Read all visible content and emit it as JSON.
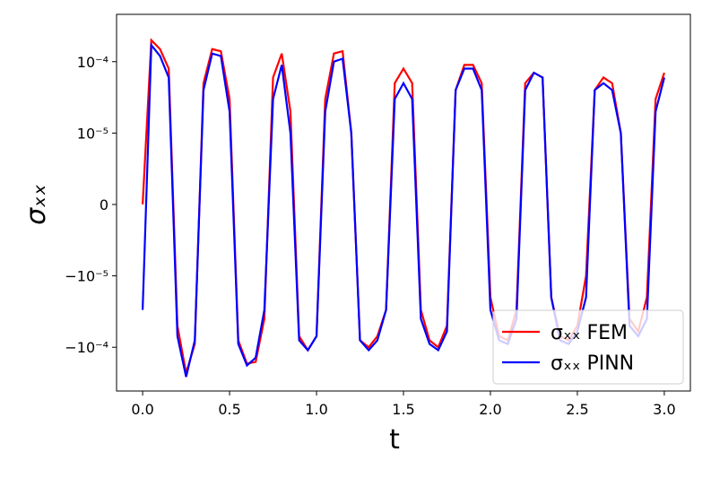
{
  "chart_data": {
    "type": "line",
    "xlabel": "t",
    "ylabel": "σₓₓ",
    "yscale": "symlog",
    "linthresh": 1e-05,
    "xlim": [
      -0.15,
      3.15
    ],
    "ylim": [
      -0.00041,
      0.00046
    ],
    "xticks": [
      {
        "value": 0,
        "label": "0.0"
      },
      0.5,
      {
        "value": 1,
        "label": "1.0"
      },
      1.5,
      {
        "value": 2,
        "label": "2.0"
      },
      2.5,
      {
        "value": 3,
        "label": "3.0"
      }
    ],
    "yticks": [
      {
        "value": -0.0001,
        "label": "−10⁻⁴"
      },
      {
        "value": -1e-05,
        "label": "−10⁻⁵"
      },
      0,
      {
        "value": 1e-05,
        "label": "10⁻⁵"
      },
      {
        "value": 0.0001,
        "label": "10⁻⁴"
      }
    ],
    "legend": "lower right",
    "x": [
      0,
      0.05,
      0.1,
      0.15,
      0.2,
      0.25,
      0.3,
      0.35,
      0.4,
      0.45,
      0.5,
      0.55,
      0.6,
      0.65,
      0.7,
      0.75,
      0.8,
      0.85,
      0.9,
      0.95,
      1.0,
      1.05,
      1.1,
      1.15,
      1.2,
      1.25,
      1.3,
      1.35,
      1.4,
      1.45,
      1.5,
      1.55,
      1.6,
      1.65,
      1.7,
      1.75,
      1.8,
      1.85,
      1.9,
      1.95,
      2.0,
      2.05,
      2.1,
      2.15,
      2.2,
      2.25,
      2.3,
      2.35,
      2.4,
      2.45,
      2.5,
      2.55,
      2.6,
      2.65,
      2.7,
      2.75,
      2.8,
      2.85,
      2.9,
      2.95,
      3.0
    ],
    "series": [
      {
        "name": "σₓₓ FEM",
        "color": "#ff0000",
        "values": [
          0,
          0.0002,
          0.00015,
          8e-05,
          -5e-05,
          -0.00023,
          -9e-05,
          5e-05,
          0.00015,
          0.00014,
          3e-05,
          -8e-05,
          -0.00017,
          -0.00016,
          -4e-05,
          6e-05,
          0.00013,
          2e-05,
          -7e-05,
          -0.00011,
          -7e-05,
          3e-05,
          0.00013,
          0.00014,
          1e-05,
          -8e-05,
          -0.0001,
          -7e-05,
          -3e-05,
          5e-05,
          8e-05,
          5e-05,
          -3e-05,
          -8e-05,
          -0.0001,
          -5e-05,
          4e-05,
          9e-05,
          9e-05,
          5e-05,
          -2e-05,
          -7e-05,
          -8e-05,
          -3e-05,
          5e-05,
          7e-05,
          6e-05,
          -2e-05,
          -7e-05,
          -8e-05,
          -5e-05,
          -1e-05,
          4e-05,
          6e-05,
          5e-05,
          1e-05,
          -4e-05,
          -6e-05,
          -2e-05,
          3e-05,
          7e-05
        ]
      },
      {
        "name": "σₓₓ PINN",
        "color": "#0000ff",
        "values": [
          -3e-05,
          0.00017,
          0.00012,
          6e-05,
          -7e-05,
          -0.00026,
          -8e-05,
          4e-05,
          0.00013,
          0.00012,
          2e-05,
          -9e-05,
          -0.00018,
          -0.00014,
          -3e-05,
          3e-05,
          9e-05,
          1e-05,
          -8e-05,
          -0.00011,
          -7e-05,
          2e-05,
          0.0001,
          0.00011,
          1e-05,
          -8e-05,
          -0.00011,
          -8e-05,
          -3e-05,
          3e-05,
          5e-05,
          3e-05,
          -4e-05,
          -9e-05,
          -0.00011,
          -6e-05,
          4e-05,
          8e-05,
          8e-05,
          4e-05,
          -3e-05,
          -8e-05,
          -9e-05,
          -4e-05,
          4e-05,
          7e-05,
          6e-05,
          -2e-05,
          -8e-05,
          -9e-05,
          -6e-05,
          -2e-05,
          4e-05,
          5e-05,
          4e-05,
          1e-05,
          -5e-05,
          -7e-05,
          -4e-05,
          2e-05,
          6e-05
        ]
      }
    ]
  }
}
